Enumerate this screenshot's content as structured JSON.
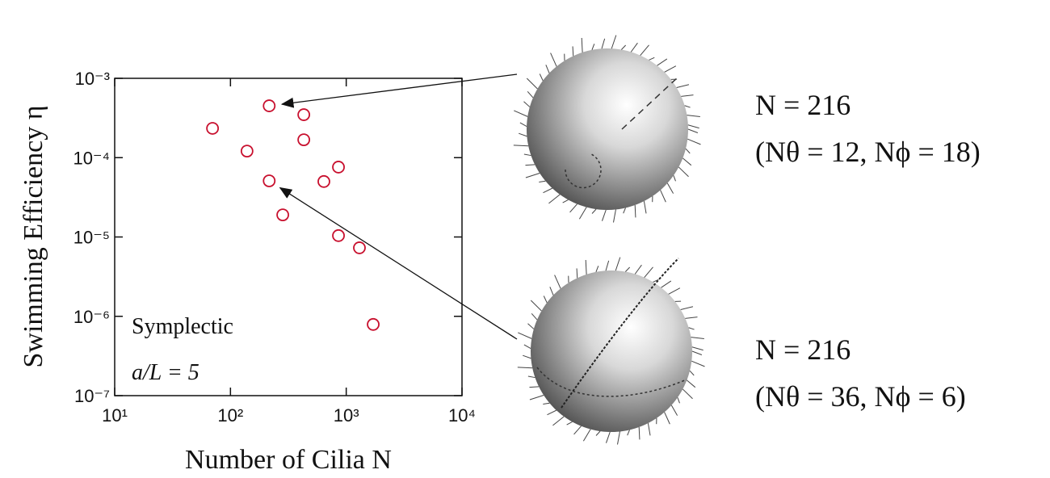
{
  "chart_data": {
    "type": "scatter",
    "xlabel": "Number of Cilia N",
    "ylabel": "Swimming Efficiency η",
    "annotations": [
      "Symplectic",
      "a/L = 5"
    ],
    "x": [
      70,
      139,
      216,
      430,
      430,
      216,
      641,
      857,
      283,
      857,
      1300,
      1710
    ],
    "values": [
      0.000234,
      0.000121,
      0.00045,
      0.000348,
      0.000168,
      5.1e-05,
      5e-05,
      7.6e-05,
      1.9e-05,
      1.04e-05,
      7.3e-06,
      7.9e-07
    ],
    "color": "#c8102e",
    "xscale": "log",
    "yscale": "log",
    "xlim": [
      10,
      10000
    ],
    "ylim": [
      1e-07,
      0.001
    ],
    "xticks": [
      {
        "value": 10,
        "label": "10¹"
      },
      {
        "value": 100,
        "label": "10²"
      },
      {
        "value": 1000,
        "label": "10³"
      },
      {
        "value": 10000,
        "label": "10⁴"
      }
    ],
    "yticks": [
      {
        "value": 1e-07,
        "label": "10⁻⁷"
      },
      {
        "value": 1e-06,
        "label": "10⁻⁶"
      },
      {
        "value": 1e-05,
        "label": "10⁻⁵"
      },
      {
        "value": 0.0001,
        "label": "10⁻⁴"
      },
      {
        "value": 0.001,
        "label": "10⁻³"
      }
    ],
    "configurations": [
      {
        "title": "N = 216",
        "detail": "(Nθ = 12, Nϕ = 18)",
        "point": 2
      },
      {
        "title": "N = 216",
        "detail": "(Nθ = 36, Nϕ = 6)",
        "point": 5
      }
    ]
  }
}
